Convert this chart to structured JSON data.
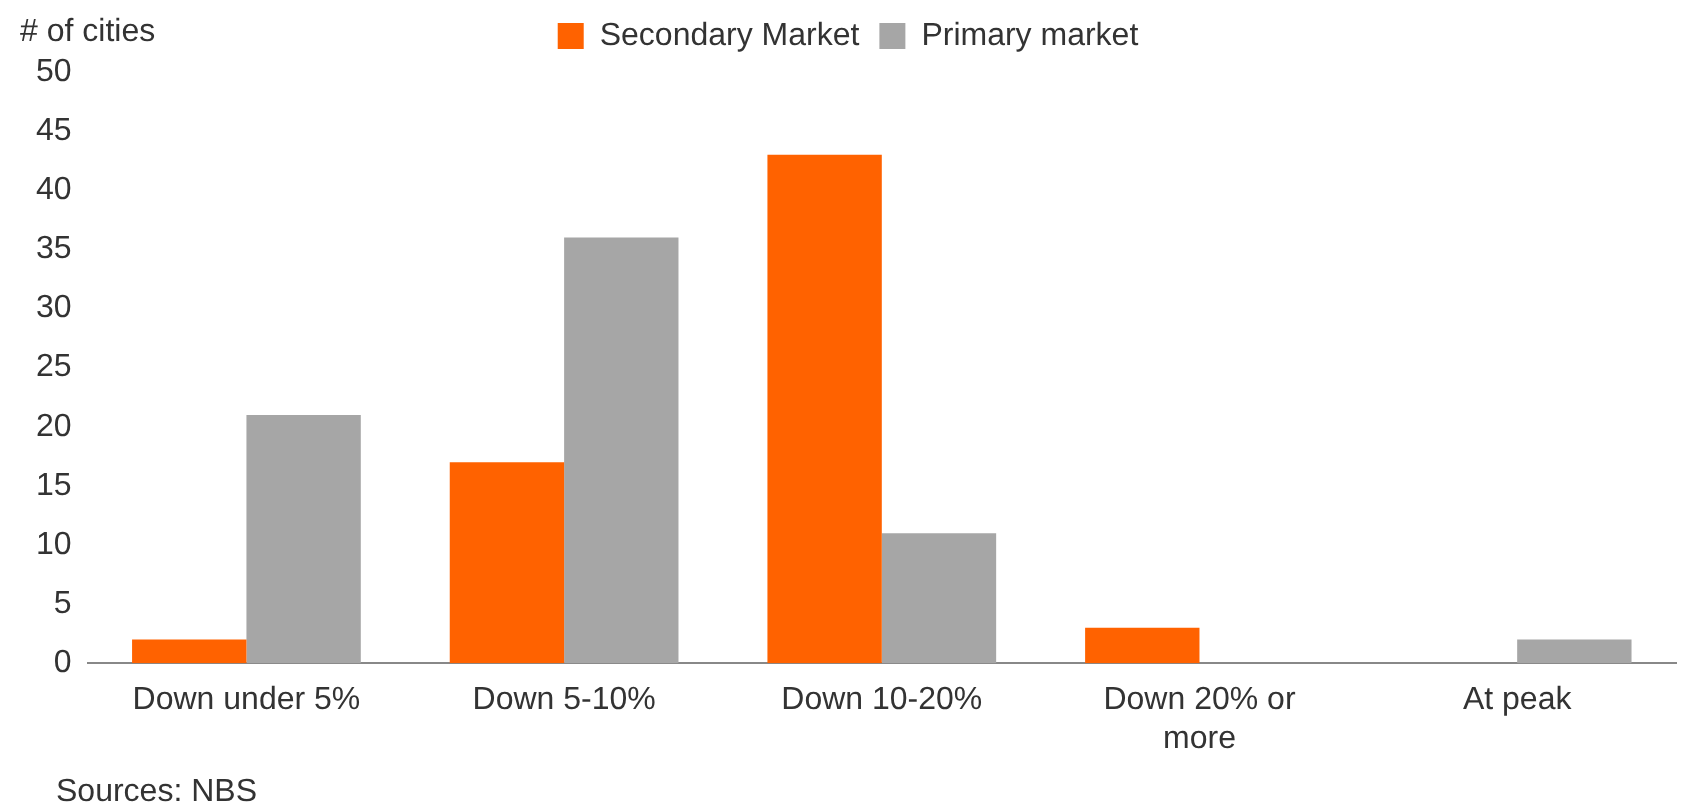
{
  "chart_data": {
    "type": "bar",
    "ylabel": "# of cities",
    "categories": [
      "Down under 5%",
      "Down 5-10%",
      "Down 10-20%",
      "Down 20% or more",
      "At peak"
    ],
    "series": [
      {
        "name": "Secondary Market",
        "color": "#ff6200",
        "values": [
          2,
          17,
          43,
          3,
          0
        ]
      },
      {
        "name": "Primary market",
        "color": "#a6a6a6",
        "values": [
          21,
          36,
          11,
          0,
          2
        ]
      }
    ],
    "ylim": [
      0,
      50
    ],
    "yticks": [
      0,
      5,
      10,
      15,
      20,
      25,
      30,
      35,
      40,
      45,
      50
    ],
    "grid": false,
    "legend": "top",
    "annotations": [
      "Sources: NBS"
    ]
  }
}
